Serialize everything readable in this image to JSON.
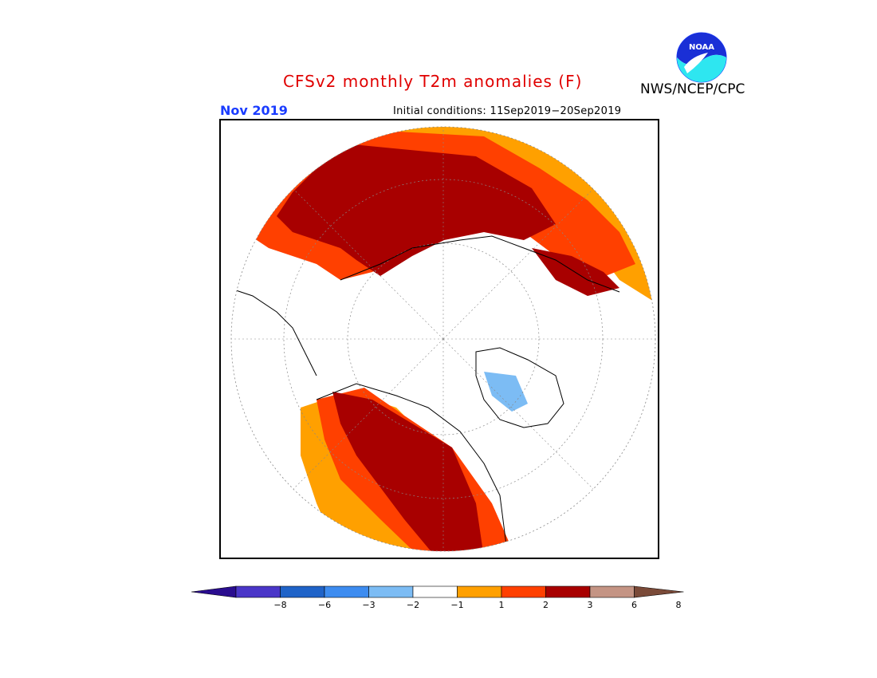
{
  "title": "CFSv2 monthly T2m anomalies (F)",
  "agency": "NWS/NCEP/CPC",
  "logo_text": "NOAA",
  "month": "Nov 2019",
  "initial_conditions": "Initial conditions: 11Sep2019−20Sep2019",
  "colorbar": {
    "colors": [
      "#2a0d8f",
      "#4a36c8",
      "#1f63c8",
      "#3d8cf0",
      "#7cbcf4",
      "#ffffff",
      "#ffa000",
      "#ff4000",
      "#a80000",
      "#c49484",
      "#7a4a38"
    ],
    "ticks": [
      "−8",
      "−6",
      "−3",
      "−2",
      "−1",
      "1",
      "2",
      "3",
      "6",
      "8"
    ]
  },
  "map": {
    "projection": "north-polar-stereographic",
    "palette": {
      "warm1": "#ffa000",
      "warm2": "#ff4000",
      "warm3": "#a80000",
      "cool1": "#7cbcf4"
    }
  }
}
